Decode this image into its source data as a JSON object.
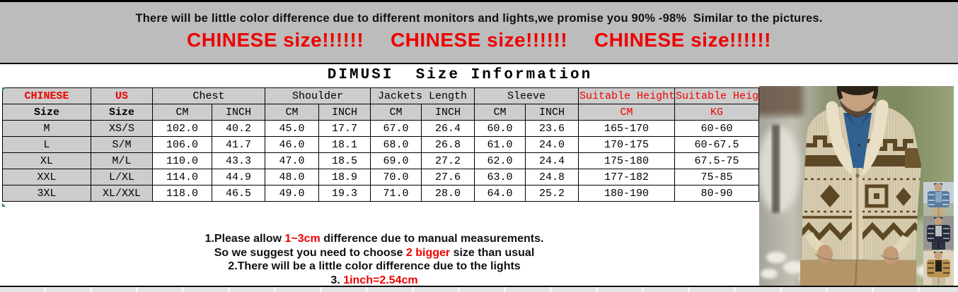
{
  "colors": {
    "accent_red": "#ee0000",
    "banner_bg": "#bcbcbc",
    "header_gray": "#cdcdcd"
  },
  "banner": {
    "line1": "There will be little color difference due to different monitors and lights,we promise you 90% -98%  Similar to the pictures.",
    "chinese_size_1": "CHINESE size!!!!!!",
    "chinese_size_2": "CHINESE size!!!!!!",
    "chinese_size_3": "CHINESE size!!!!!!"
  },
  "size_info": {
    "title": "DIMUSI  Size Information",
    "header": {
      "chinese": "CHINESE",
      "us": "US",
      "size": "Size",
      "chest": "Chest",
      "shoulder": "Shoulder",
      "jackets_length": "Jackets Length",
      "sleeve": "Sleeve",
      "suitable_height": "Suitable Height",
      "cm": "CM",
      "inch": "INCH",
      "kg": "KG"
    },
    "rows": [
      [
        "M",
        "XS/S",
        "102.0",
        "40.2",
        "45.0",
        "17.7",
        "67.0",
        "26.4",
        "60.0",
        "23.6",
        "165-170",
        "60-60"
      ],
      [
        "L",
        "S/M",
        "106.0",
        "41.7",
        "46.0",
        "18.1",
        "68.0",
        "26.8",
        "61.0",
        "24.0",
        "170-175",
        "60-67.5"
      ],
      [
        "XL",
        "M/L",
        "110.0",
        "43.3",
        "47.0",
        "18.5",
        "69.0",
        "27.2",
        "62.0",
        "24.4",
        "175-180",
        "67.5-75"
      ],
      [
        "XXL",
        "L/XL",
        "114.0",
        "44.9",
        "48.0",
        "18.9",
        "70.0",
        "27.6",
        "63.0",
        "24.8",
        "177-182",
        "75-85"
      ],
      [
        "3XL",
        "XL/XXL",
        "118.0",
        "46.5",
        "49.0",
        "19.3",
        "71.0",
        "28.0",
        "64.0",
        "25.2",
        "180-190",
        "80-90"
      ]
    ]
  },
  "notes": {
    "n1_pre": "1.Please allow ",
    "n1_red": "1~3cm",
    "n1_post": " difference due to manual measurements.",
    "n2_pre": "So we suggest you need to choose ",
    "n2_red": "2 bigger",
    "n2_post": " size than usual",
    "n3": "2.There will be a little color difference due to the lights",
    "n4_pre": "3. ",
    "n4_red": "1inch=2.54cm"
  }
}
